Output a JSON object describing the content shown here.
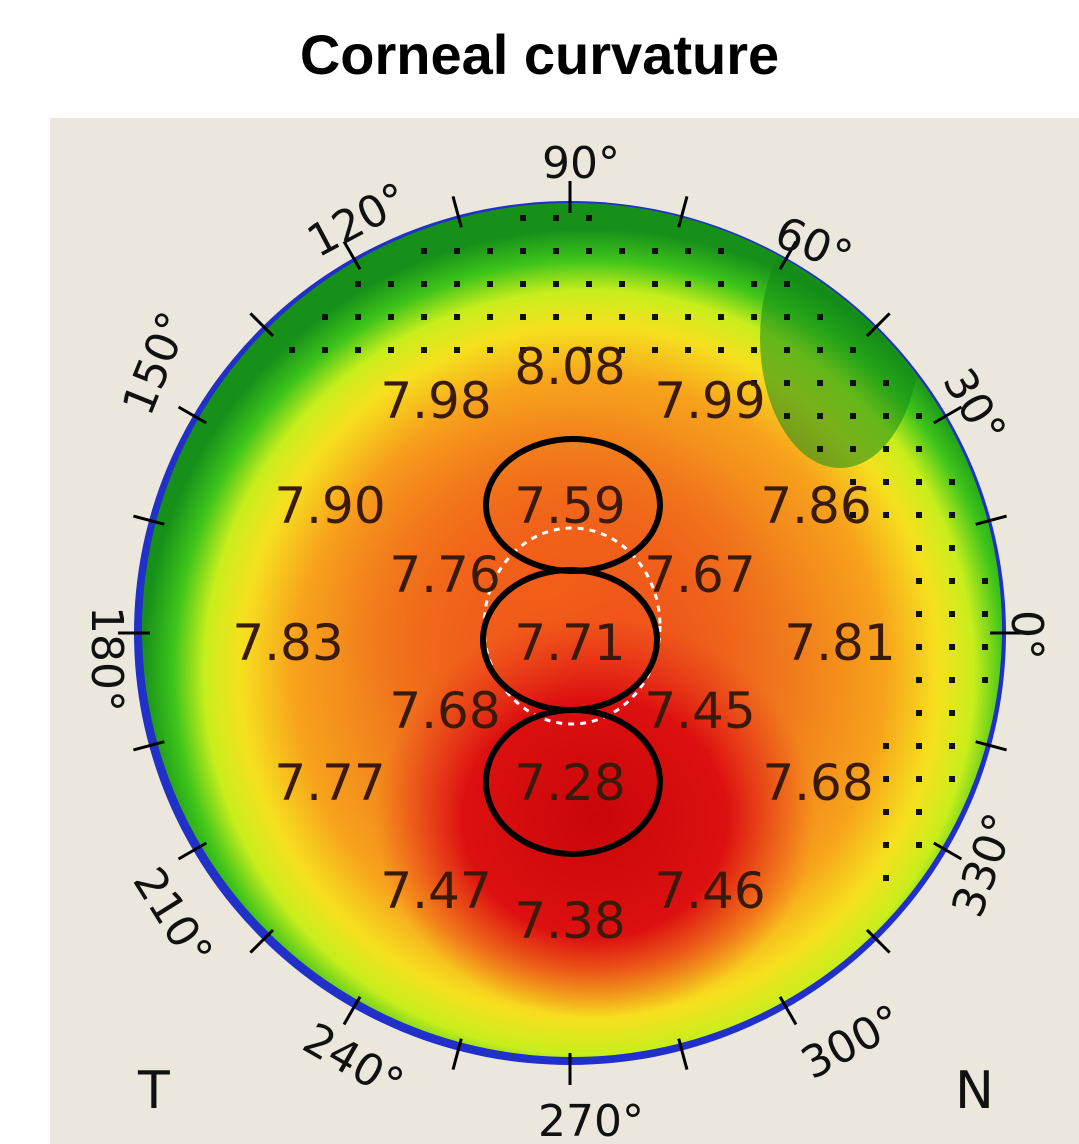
{
  "title": "Corneal curvature",
  "colors": {
    "background": "#ebe7dc",
    "center_red": "#d3090c",
    "orange": "#f06a1a",
    "yellow": "#f5f51e",
    "green": "#23b818",
    "edge_blue": "#2030c8",
    "highlight_ring": "#000000"
  },
  "angle_labels": [
    {
      "id": "90",
      "text": "90°"
    },
    {
      "id": "60",
      "text": "60°"
    },
    {
      "id": "30",
      "text": "30°"
    },
    {
      "id": "0",
      "text": "0°"
    },
    {
      "id": "330",
      "text": "330°"
    },
    {
      "id": "300",
      "text": "300°"
    },
    {
      "id": "270",
      "text": "270°"
    },
    {
      "id": "240",
      "text": "240°"
    },
    {
      "id": "210",
      "text": "210°"
    },
    {
      "id": "180",
      "text": "180°"
    },
    {
      "id": "150",
      "text": "150°"
    },
    {
      "id": "120",
      "text": "120°"
    }
  ],
  "side_labels": {
    "temporal": "T",
    "nasal": "N"
  },
  "readings": [
    {
      "id": "r1",
      "value": "8.08"
    },
    {
      "id": "r2",
      "value": "7.98"
    },
    {
      "id": "r3",
      "value": "7.99"
    },
    {
      "id": "r4",
      "value": "7.90"
    },
    {
      "id": "r5",
      "value": "7.59"
    },
    {
      "id": "r6",
      "value": "7.86"
    },
    {
      "id": "r7",
      "value": "7.76"
    },
    {
      "id": "r8",
      "value": "7.67"
    },
    {
      "id": "r9",
      "value": "7.83"
    },
    {
      "id": "r10",
      "value": "7.71"
    },
    {
      "id": "r11",
      "value": "7.81"
    },
    {
      "id": "r12",
      "value": "7.68"
    },
    {
      "id": "r13",
      "value": "7.45"
    },
    {
      "id": "r14",
      "value": "7.77"
    },
    {
      "id": "r15",
      "value": "7.28"
    },
    {
      "id": "r16",
      "value": "7.68"
    },
    {
      "id": "r17",
      "value": "7.47"
    },
    {
      "id": "r18",
      "value": "7.46"
    },
    {
      "id": "r19",
      "value": "7.38"
    }
  ]
}
